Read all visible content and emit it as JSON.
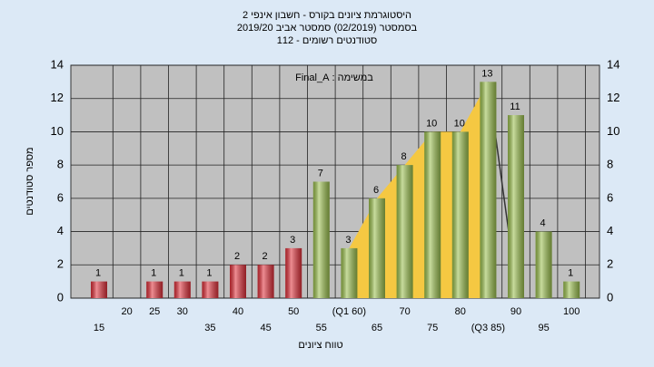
{
  "chart_data": {
    "type": "bar",
    "title": [
      "היסטוגרמת ציונים בקורס - חשבון אינפי 2",
      "בסמסטר  (02/2019)  סמסטר אביב 2019/20",
      "סטודנטים רשומים - 112"
    ],
    "annotation": "במשימה : Final_A",
    "x_label": "טווח ציונים",
    "y_label": "מספר סטודנטים",
    "categories": [
      "15",
      "20",
      "25",
      "30",
      "35",
      "40",
      "45",
      "50",
      "55",
      "(Q1 60)",
      "65",
      "70",
      "75",
      "80",
      "(Q3 85)",
      "90",
      "95",
      "100"
    ],
    "values": [
      1,
      null,
      1,
      1,
      1,
      2,
      2,
      3,
      7,
      3,
      6,
      8,
      10,
      10,
      13,
      11,
      4,
      1
    ],
    "colors": [
      "#e0303a",
      "#e0303a",
      "#e0303a",
      "#e0303a",
      "#e0303a",
      "#e0303a",
      "#e0303a",
      "#e0303a",
      "#9bc04e",
      "#9bc04e",
      "#9bc04e",
      "#9bc04e",
      "#9bc04e",
      "#9bc04e",
      "#9bc04e",
      "#9bc04e",
      "#9bc04e",
      "#9bc04e"
    ],
    "quartile_area_color": "#f5c842",
    "ylim": [
      0,
      14
    ],
    "yticks": [
      0,
      2,
      4,
      6,
      8,
      10,
      12,
      14
    ],
    "grid": true
  }
}
